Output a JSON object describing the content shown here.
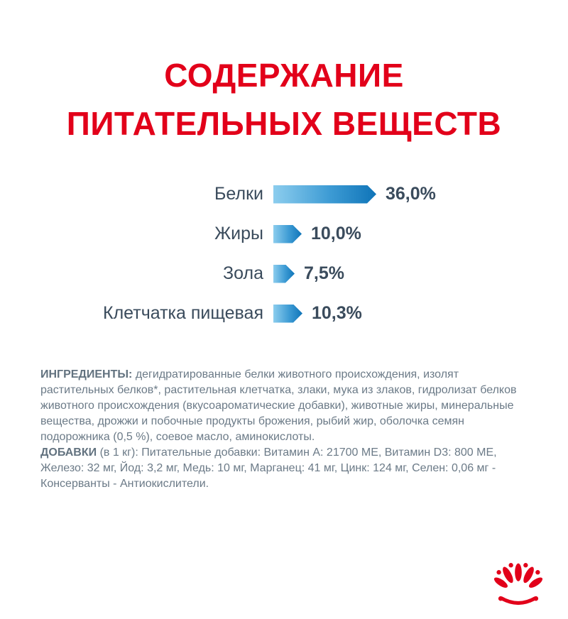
{
  "title": {
    "line1": "СОДЕРЖАНИЕ",
    "line2": "ПИТАТЕЛЬНЫХ ВЕЩЕСТВ"
  },
  "chart_data": {
    "type": "bar",
    "orientation": "horizontal",
    "title": "Содержание питательных веществ",
    "categories": [
      "Белки",
      "Жиры",
      "Зола",
      "Клетчатка пищевая"
    ],
    "values": [
      36.0,
      10.0,
      7.5,
      10.3
    ],
    "value_labels": [
      "36,0%",
      "10,0%",
      "7,5%",
      "10,3%"
    ],
    "unit": "%",
    "xlim": [
      0,
      36
    ],
    "bar_color_start": "#8ccdee",
    "bar_color_end": "#0f74b8",
    "grid": false,
    "legend": false
  },
  "ingredients": {
    "label": "ИНГРЕДИЕНТЫ:",
    "text": "дегидратированные белки животного происхождения, изолят растительных белков*, растительная клетчатка, злаки, мука из злаков, гидролизат белков животного происхождения (вкусоароматические добавки), животные жиры, минеральные вещества, дрожжи и побочные продукты брожения, рыбий жир, оболочка семян подорожника (0,5 %), соевое масло, аминокислоты."
  },
  "additives": {
    "label": "ДОБАВКИ",
    "text": "(в 1 кг): Питательные добавки: Витамин A: 21700 МЕ, Витамин D3: 800 МЕ, Железо: 32 мг, Йод: 3,2 мг, Медь: 10 мг, Марганец: 41 мг, Цинк: 124 мг, Селен: 0,06 мг - Консерванты - Антиокислители."
  },
  "logo": {
    "name": "royal-canin-crown",
    "color": "#e2001a"
  },
  "colors": {
    "title_red": "#e2001a",
    "label_dark": "#3a4b5c",
    "body_text": "#6b7a87",
    "bar_gradient_start": "#8ccdee",
    "bar_gradient_end": "#0f74b8"
  }
}
